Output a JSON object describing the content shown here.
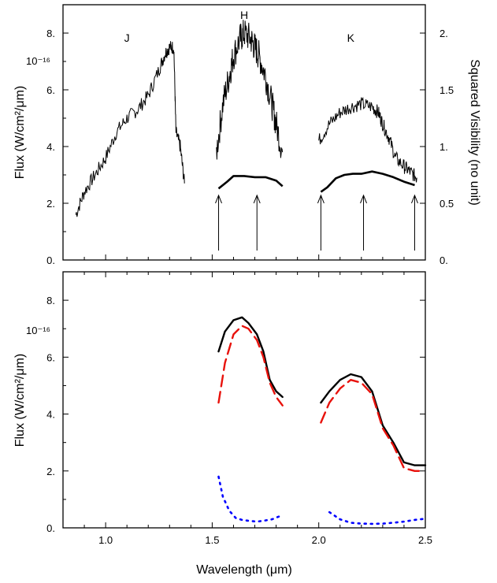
{
  "chart_data": [
    {
      "type": "line",
      "panel": "top",
      "ylabel": "Flux (W/cm²/μm)",
      "y_multiplier": "10⁻¹⁶",
      "ylim": [
        0,
        9.0
      ],
      "yticks": [
        0,
        2,
        4,
        6,
        8
      ],
      "ytick_labels": [
        "0.",
        "2.",
        "4.",
        "6.",
        "8."
      ],
      "y2label": "Squared Visibility (no unit)",
      "y2lim": [
        0,
        2.25
      ],
      "y2ticks": [
        0,
        0.5,
        1.0,
        1.5,
        2.0
      ],
      "y2tick_labels": [
        "0.",
        "0.5",
        "1.",
        "1.5",
        "2."
      ],
      "xlim": [
        0.8,
        2.5
      ],
      "band_labels": [
        {
          "label": "J",
          "x": 1.1,
          "y": 7.7
        },
        {
          "label": "H",
          "x": 1.65,
          "y": 8.5
        },
        {
          "label": "K",
          "x": 2.15,
          "y": 7.7
        }
      ],
      "series": [
        {
          "kind": "flux_spectrum",
          "color": "#000000",
          "segments": [
            {
              "x": [
                0.86,
                0.9,
                0.95,
                1.0,
                1.05,
                1.1,
                1.15,
                1.2,
                1.25,
                1.28,
                1.3,
                1.32,
                1.33,
                1.35,
                1.37
              ],
              "y": [
                1.6,
                2.4,
                3.0,
                3.6,
                4.5,
                5.0,
                5.3,
                5.8,
                6.7,
                7.3,
                7.5,
                7.5,
                4.5,
                4.0,
                2.7
              ]
            },
            {
              "x": [
                1.52,
                1.55,
                1.58,
                1.6,
                1.63,
                1.65,
                1.68,
                1.7,
                1.72,
                1.75,
                1.78,
                1.8,
                1.83
              ],
              "y": [
                3.8,
                5.5,
                6.5,
                7.2,
                7.8,
                8.0,
                7.8,
                7.5,
                7.2,
                6.5,
                5.5,
                4.8,
                3.8
              ]
            },
            {
              "x": [
                2.0,
                2.05,
                2.1,
                2.15,
                2.2,
                2.25,
                2.28,
                2.3,
                2.33,
                2.36,
                2.4,
                2.43,
                2.46
              ],
              "y": [
                4.2,
                4.8,
                5.2,
                5.4,
                5.5,
                5.4,
                5.2,
                4.8,
                4.3,
                3.6,
                3.3,
                3.1,
                2.9
              ]
            }
          ]
        },
        {
          "kind": "squared_visibility",
          "axis": "y2",
          "color": "#000000",
          "segments": [
            {
              "x": [
                1.53,
                1.57,
                1.6,
                1.65,
                1.7,
                1.75,
                1.8,
                1.83
              ],
              "y": [
                0.63,
                0.69,
                0.74,
                0.74,
                0.73,
                0.73,
                0.7,
                0.65
              ]
            },
            {
              "x": [
                2.01,
                2.04,
                2.08,
                2.12,
                2.16,
                2.2,
                2.25,
                2.3,
                2.35,
                2.4,
                2.45
              ],
              "y": [
                0.6,
                0.64,
                0.72,
                0.75,
                0.76,
                0.76,
                0.78,
                0.76,
                0.73,
                0.69,
                0.66
              ]
            }
          ]
        }
      ],
      "arrows_x": [
        1.53,
        1.71,
        2.01,
        2.21,
        2.45
      ]
    },
    {
      "type": "line",
      "panel": "bottom",
      "xlabel": "Wavelength (μm)",
      "ylabel": "Flux (W/cm²/μm)",
      "y_multiplier": "10⁻¹⁶",
      "xlim": [
        0.8,
        2.5
      ],
      "xticks": [
        1.0,
        1.5,
        2.0,
        2.5
      ],
      "xtick_labels": [
        "1.0",
        "1.5",
        "2.0",
        "2.5"
      ],
      "ylim": [
        0,
        9.0
      ],
      "yticks": [
        0,
        2,
        4,
        6,
        8
      ],
      "ytick_labels": [
        "0.",
        "2.",
        "4.",
        "6.",
        "8."
      ],
      "series": [
        {
          "style": "solid",
          "color": "#000000",
          "segments": [
            {
              "x": [
                1.53,
                1.56,
                1.6,
                1.64,
                1.67,
                1.71,
                1.74,
                1.77,
                1.8,
                1.83
              ],
              "y": [
                6.2,
                6.9,
                7.3,
                7.4,
                7.2,
                6.8,
                6.2,
                5.2,
                4.8,
                4.6
              ]
            },
            {
              "x": [
                2.01,
                2.05,
                2.1,
                2.15,
                2.2,
                2.25,
                2.3,
                2.35,
                2.4,
                2.45,
                2.5
              ],
              "y": [
                4.4,
                4.8,
                5.2,
                5.4,
                5.3,
                4.8,
                3.6,
                3.0,
                2.3,
                2.2,
                2.2
              ]
            }
          ]
        },
        {
          "style": "dashed",
          "color": "#e8120c",
          "segments": [
            {
              "x": [
                1.53,
                1.56,
                1.6,
                1.64,
                1.67,
                1.71,
                1.74,
                1.77,
                1.8,
                1.83
              ],
              "y": [
                4.4,
                5.8,
                6.8,
                7.1,
                7.0,
                6.6,
                6.0,
                5.1,
                4.6,
                4.3
              ]
            },
            {
              "x": [
                2.01,
                2.05,
                2.1,
                2.15,
                2.2,
                2.25,
                2.3,
                2.35,
                2.4,
                2.45,
                2.47
              ],
              "y": [
                3.7,
                4.4,
                4.9,
                5.2,
                5.1,
                4.7,
                3.5,
                2.9,
                2.1,
                2.0,
                2.0
              ]
            }
          ]
        },
        {
          "style": "dotted",
          "color": "#0000ff",
          "segments": [
            {
              "x": [
                1.53,
                1.55,
                1.58,
                1.61,
                1.64,
                1.67,
                1.71,
                1.74,
                1.78,
                1.83
              ],
              "y": [
                1.8,
                1.1,
                0.6,
                0.35,
                0.28,
                0.25,
                0.22,
                0.25,
                0.3,
                0.45
              ]
            },
            {
              "x": [
                2.05,
                2.1,
                2.15,
                2.2,
                2.25,
                2.3,
                2.35,
                2.4,
                2.45,
                2.5
              ],
              "y": [
                0.55,
                0.3,
                0.18,
                0.15,
                0.14,
                0.15,
                0.18,
                0.22,
                0.28,
                0.32
              ]
            }
          ]
        }
      ]
    }
  ]
}
